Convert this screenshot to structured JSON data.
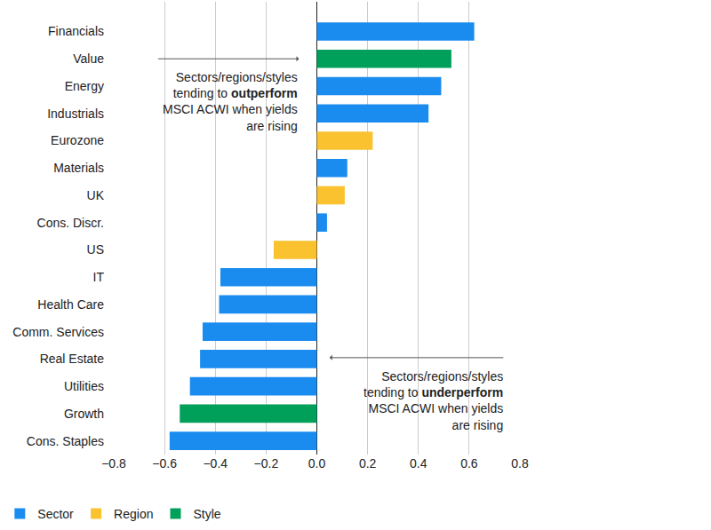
{
  "chart_data": {
    "type": "bar",
    "orientation": "horizontal",
    "categories": [
      "Financials",
      "Value",
      "Energy",
      "Industrials",
      "Eurozone",
      "Materials",
      "UK",
      "Cons. Discr.",
      "US",
      "IT",
      "Health Care",
      "Comm. Services",
      "Real Estate",
      "Utilities",
      "Growth",
      "Cons. Staples"
    ],
    "series": [
      {
        "name": "Sector",
        "color": "#1a8cf0",
        "values": [
          0.62,
          null,
          0.49,
          0.44,
          null,
          0.12,
          null,
          0.04,
          null,
          -0.38,
          -0.385,
          -0.45,
          -0.46,
          -0.5,
          null,
          -0.58
        ]
      },
      {
        "name": "Region",
        "color": "#f9c22e",
        "values": [
          null,
          null,
          null,
          null,
          0.22,
          null,
          0.11,
          null,
          -0.17,
          null,
          null,
          null,
          null,
          null,
          null,
          null
        ]
      },
      {
        "name": "Style",
        "color": "#00a05a",
        "values": [
          null,
          0.53,
          null,
          null,
          null,
          null,
          null,
          null,
          null,
          null,
          null,
          null,
          null,
          null,
          -0.54,
          null
        ]
      }
    ],
    "xlim": [
      -0.8,
      0.8
    ],
    "xticks": [
      {
        "value": -0.8,
        "label": "−0.8"
      },
      {
        "value": -0.6,
        "label": "−0.6"
      },
      {
        "value": -0.4,
        "label": "−0.4"
      },
      {
        "value": -0.2,
        "label": "−0.2"
      },
      {
        "value": 0,
        "label": "0.0"
      },
      0.2,
      0.4,
      0.6,
      0.8
    ],
    "grid": true,
    "legend": "bottom left",
    "annotations": [
      {
        "lines": [
          "Sectors/regions/styles",
          "tending to outperform",
          "MSCI ACWI when yields",
          "are rising"
        ],
        "emphasis": "outperform"
      },
      {
        "lines": [
          "Sectors/regions/styles",
          "tending to underperform",
          "MSCI ACWI when yields",
          "are rising"
        ],
        "emphasis": "underperform"
      }
    ]
  }
}
